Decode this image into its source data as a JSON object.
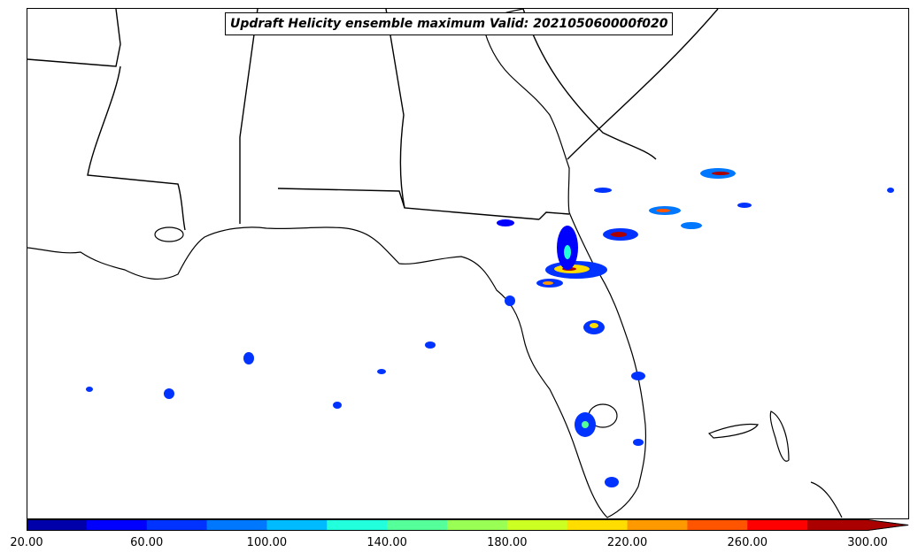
{
  "title": "Updraft Helicity ensemble maximum Valid: 202105060000f020",
  "colorbar": {
    "tick_labels": [
      "20.00",
      "60.00",
      "100.00",
      "140.00",
      "180.00",
      "220.00",
      "260.00",
      "300.00"
    ],
    "min": 20,
    "max": 300,
    "step": 20,
    "extend": "max",
    "colors": [
      "#0000aa",
      "#0000ff",
      "#0033ff",
      "#0077ff",
      "#00bbff",
      "#22ffdd",
      "#55ff99",
      "#99ff55",
      "#ccff22",
      "#ffdd00",
      "#ff9900",
      "#ff5500",
      "#ff0000",
      "#aa0000"
    ]
  },
  "legend": {
    "outline_color": "#000000"
  }
}
